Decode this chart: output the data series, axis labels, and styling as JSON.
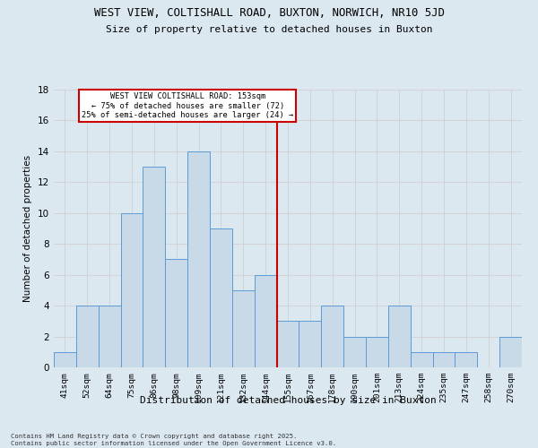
{
  "title1": "WEST VIEW, COLTISHALL ROAD, BUXTON, NORWICH, NR10 5JD",
  "title2": "Size of property relative to detached houses in Buxton",
  "xlabel": "Distribution of detached houses by size in Buxton",
  "ylabel": "Number of detached properties",
  "categories": [
    "41sqm",
    "52sqm",
    "64sqm",
    "75sqm",
    "86sqm",
    "98sqm",
    "109sqm",
    "121sqm",
    "132sqm",
    "144sqm",
    "155sqm",
    "167sqm",
    "178sqm",
    "190sqm",
    "201sqm",
    "213sqm",
    "224sqm",
    "235sqm",
    "247sqm",
    "258sqm",
    "270sqm"
  ],
  "values": [
    1,
    4,
    4,
    10,
    13,
    7,
    14,
    9,
    5,
    6,
    3,
    3,
    4,
    2,
    2,
    4,
    1,
    1,
    1,
    0,
    2
  ],
  "bar_color": "#c8d9e8",
  "bar_edge_color": "#5b9bd5",
  "grid_color": "#d0d0d0",
  "vline_index": 10,
  "vline_color": "#cc0000",
  "annotation_text": "WEST VIEW COLTISHALL ROAD: 153sqm\n← 75% of detached houses are smaller (72)\n25% of semi-detached houses are larger (24) →",
  "annotation_box_color": "#ffffff",
  "annotation_box_edge": "#cc0000",
  "ylim": [
    0,
    18
  ],
  "yticks": [
    0,
    2,
    4,
    6,
    8,
    10,
    12,
    14,
    16,
    18
  ],
  "footer": "Contains HM Land Registry data © Crown copyright and database right 2025.\nContains public sector information licensed under the Open Government Licence v3.0.",
  "bg_color": "#dce8f0"
}
